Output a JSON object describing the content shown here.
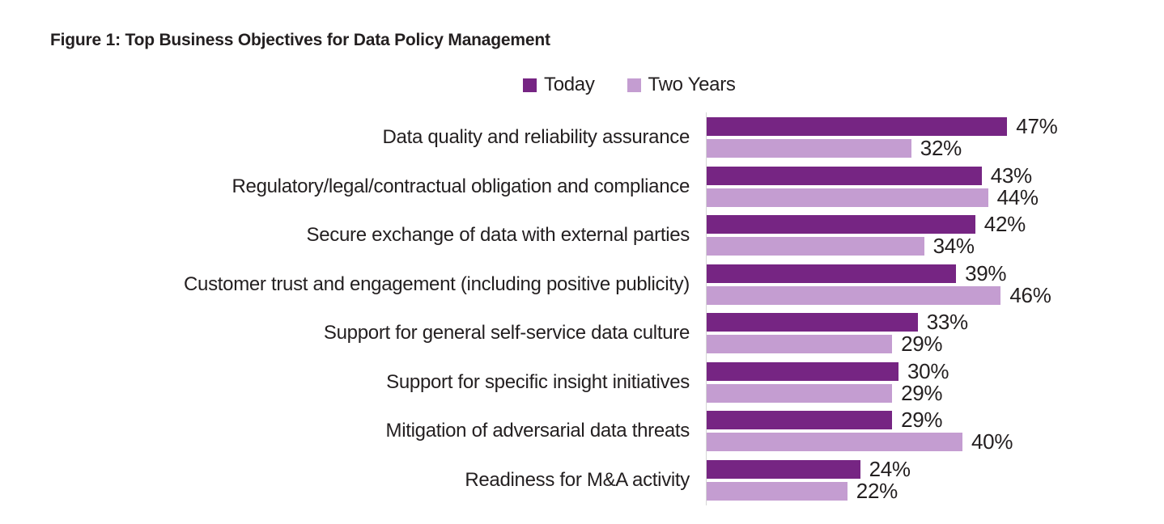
{
  "figure": {
    "title": "Figure 1: Top Business Objectives for Data Policy Management"
  },
  "legend": [
    {
      "label": "Today",
      "color": "#762583"
    },
    {
      "label": "Two Years",
      "color": "#C49DD1"
    }
  ],
  "colors": {
    "today": "#762583",
    "two_years": "#C49DD1",
    "axis_line": "#D6D6D6",
    "text": "#231F20"
  },
  "chart_data": {
    "type": "bar",
    "orientation": "horizontal",
    "title": "Figure 1: Top Business Objectives for Data Policy Management",
    "categories": [
      "Data quality and reliability assurance",
      "Regulatory/legal/contractual obligation and compliance",
      "Secure exchange of data with external parties",
      "Customer trust and engagement (including positive publicity)",
      "Support for general self-service data culture",
      "Support for specific insight initiatives",
      "Mitigation of adversarial data threats",
      "Readiness for M&A activity"
    ],
    "series": [
      {
        "name": "Today",
        "color": "#762583",
        "values": [
          47,
          43,
          42,
          39,
          33,
          30,
          29,
          24
        ]
      },
      {
        "name": "Two Years",
        "color": "#C49DD1",
        "values": [
          32,
          44,
          34,
          46,
          29,
          29,
          40,
          22
        ]
      }
    ],
    "value_suffix": "%",
    "xlim": [
      0,
      50
    ],
    "grid": false,
    "legend_position": "top-center",
    "xlabel": "",
    "ylabel": ""
  }
}
